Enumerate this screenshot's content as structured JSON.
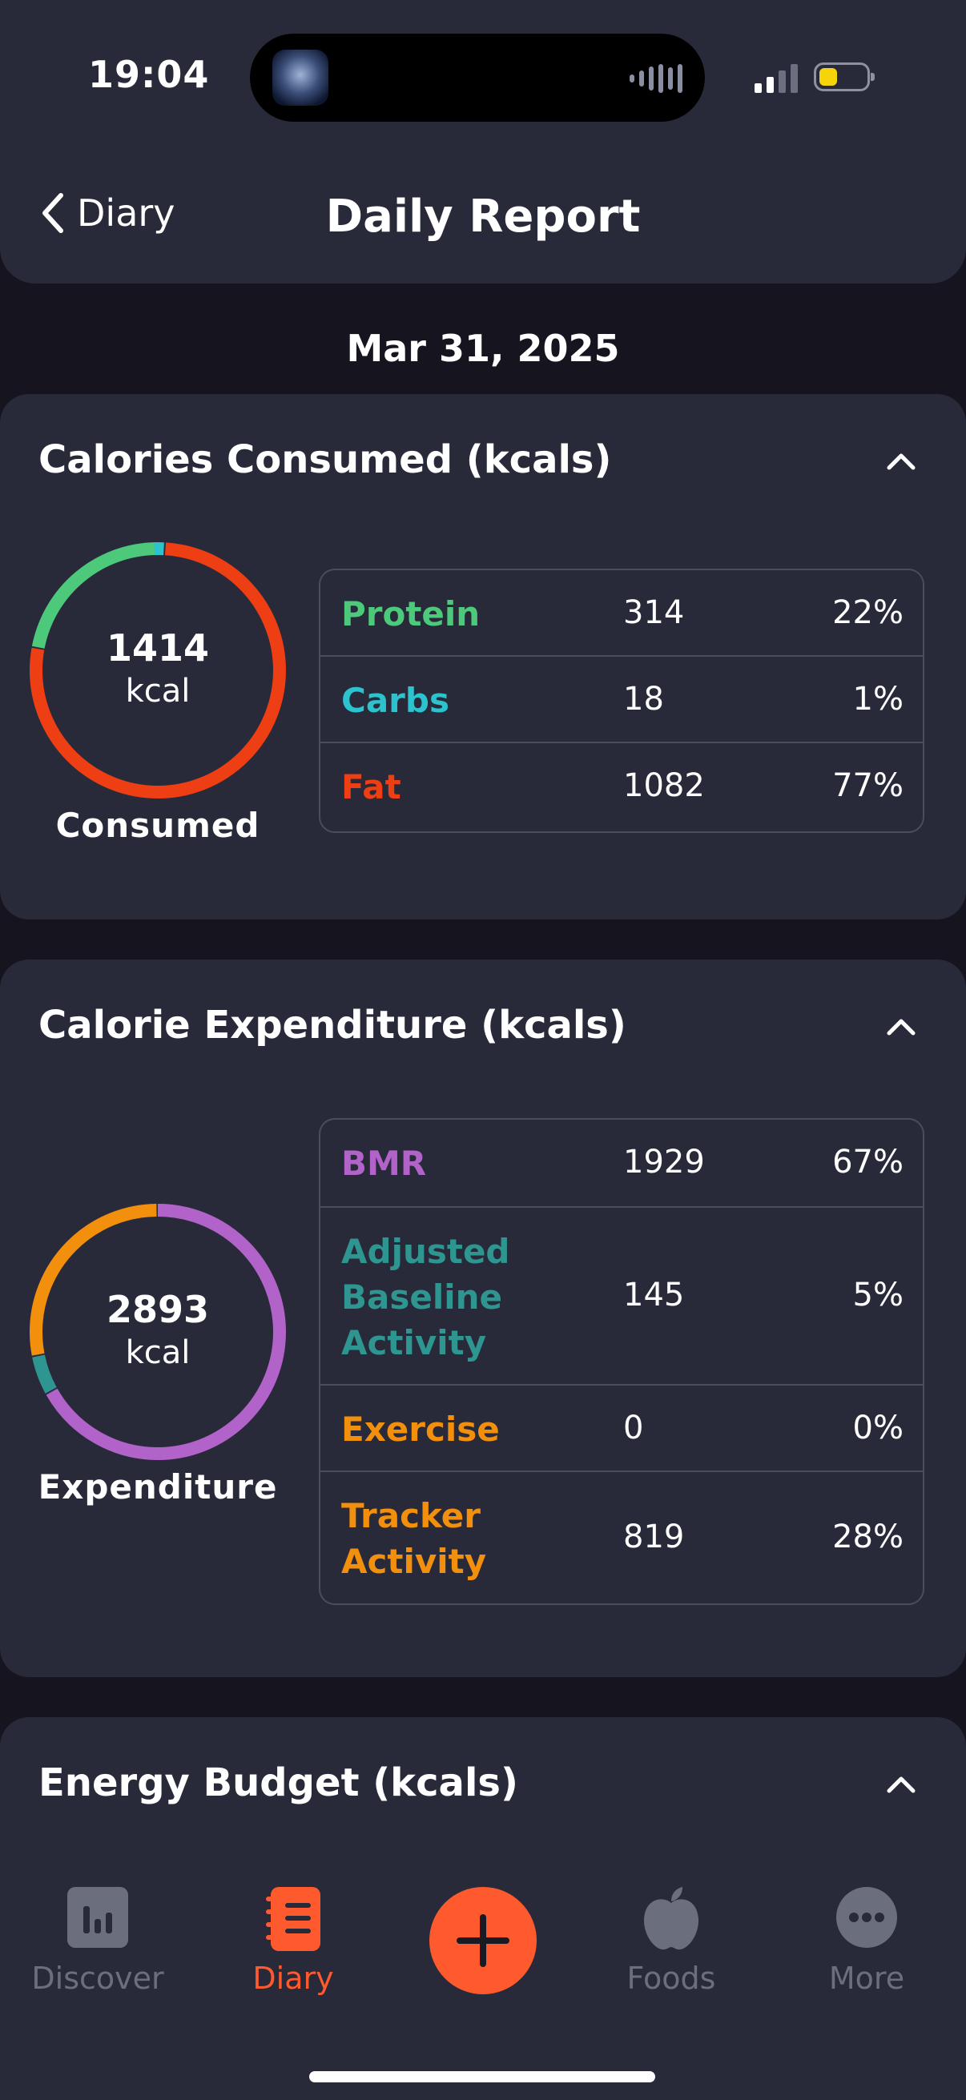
{
  "status_bar": {
    "time": "19:04"
  },
  "header": {
    "back_label": "Diary",
    "title": "Daily Report"
  },
  "date": "Mar 31, 2025",
  "colors": {
    "protein": "#4cc97a",
    "carbs": "#2cc3cf",
    "fat": "#ee3e13",
    "bmr": "#b263c9",
    "adjusted": "#2f9590",
    "exercise": "#f2900d",
    "tracker": "#f2900d",
    "accent": "#ff5a2e"
  },
  "calories_consumed": {
    "title": "Calories Consumed (kcals)",
    "total": "1414",
    "unit": "kcal",
    "label": "Consumed",
    "rows": [
      {
        "name": "Protein",
        "value": "314",
        "percent": "22%"
      },
      {
        "name": "Carbs",
        "value": "18",
        "percent": "1%"
      },
      {
        "name": "Fat",
        "value": "1082",
        "percent": "77%"
      }
    ]
  },
  "calorie_expenditure": {
    "title": "Calorie Expenditure (kcals)",
    "total": "2893",
    "unit": "kcal",
    "label": "Expenditure",
    "rows": [
      {
        "name": "BMR",
        "value": "1929",
        "percent": "67%"
      },
      {
        "name_lines": [
          "Adjusted",
          "Baseline",
          "Activity"
        ],
        "value": "145",
        "percent": "5%"
      },
      {
        "name": "Exercise",
        "value": "0",
        "percent": "0%"
      },
      {
        "name_lines": [
          "Tracker",
          "Activity"
        ],
        "value": "819",
        "percent": "28%"
      }
    ]
  },
  "energy_budget": {
    "title": "Energy Budget (kcals)"
  },
  "nav": {
    "items": [
      {
        "label": "Discover",
        "icon": "bar-chart-icon"
      },
      {
        "label": "Diary",
        "icon": "notebook-icon"
      },
      {
        "label": "",
        "icon": "plus-icon"
      },
      {
        "label": "Foods",
        "icon": "apple-icon"
      },
      {
        "label": "More",
        "icon": "more-icon"
      }
    ]
  }
}
